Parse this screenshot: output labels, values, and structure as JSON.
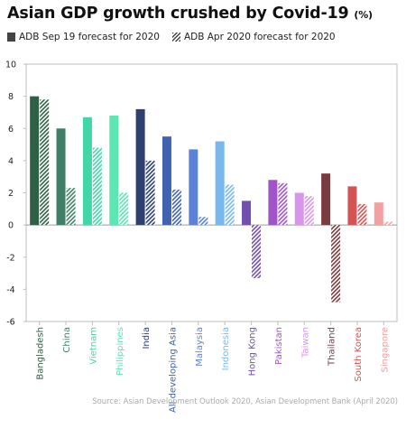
{
  "title": "Asian GDP growth crushed by Covid-19",
  "title_unit": "(%)",
  "legend": {
    "solid_label": "ADB Sep 19 forecast for 2020",
    "hatched_label": "ADB Apr 2020 forecast for 2020"
  },
  "source": "Source: Asian Development Outlook 2020, Asian Development Bank (April 2020)",
  "chart_data": {
    "type": "bar",
    "categories": [
      "Bangladesh",
      "China",
      "Vietnam",
      "Philippines",
      "India",
      "All developing Asia",
      "Malaysia",
      "Indonesia",
      "Hong Kong",
      "Pakistan",
      "Taiwan",
      "Thailand",
      "South Korea",
      "Singapore"
    ],
    "series": [
      {
        "name": "ADB Sep 19 forecast for 2020",
        "pattern": "solid",
        "values": [
          8.0,
          6.0,
          6.7,
          6.8,
          7.2,
          5.5,
          4.7,
          5.2,
          1.5,
          2.8,
          2.0,
          3.2,
          2.4,
          1.4
        ]
      },
      {
        "name": "ADB Apr 2020 forecast for 2020",
        "pattern": "hatched",
        "values": [
          7.8,
          2.3,
          4.8,
          2.0,
          4.0,
          2.2,
          0.5,
          2.5,
          -3.3,
          2.6,
          1.8,
          -4.8,
          1.3,
          0.2
        ]
      }
    ],
    "colors": [
      "#2f5f45",
      "#3f7f68",
      "#40d6a7",
      "#5ce6b4",
      "#2e4070",
      "#3f63b0",
      "#5b82d6",
      "#78b8ef",
      "#7250b0",
      "#a154c8",
      "#d995ec",
      "#7a3b3e",
      "#d35454",
      "#f2a0a0"
    ],
    "ylim": [
      -6,
      10
    ],
    "yticks": [
      -6,
      -4,
      -2,
      0,
      2,
      4,
      6,
      8,
      10
    ],
    "grid": false,
    "legend_position": "top-left"
  }
}
